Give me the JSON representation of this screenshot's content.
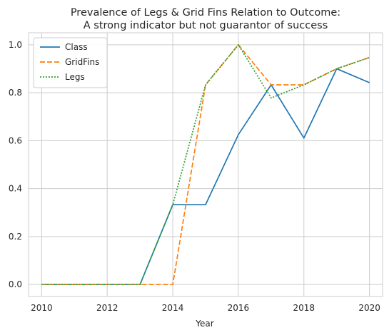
{
  "chart_data": {
    "type": "line",
    "title": "Prevalence of Legs & Grid Fins Relation to Outcome:",
    "subtitle": "A strong indicator but not guarantor of success",
    "xlabel": "Year",
    "ylabel": "",
    "xlim": [
      2009.6,
      2020.4
    ],
    "ylim": [
      -0.05,
      1.05
    ],
    "xticks": [
      "2010",
      "2012",
      "2014",
      "2016",
      "2018",
      "2020"
    ],
    "yticks": [
      "0.0",
      "0.2",
      "0.4",
      "0.6",
      "0.8",
      "1.0"
    ],
    "grid": true,
    "legend_position": "top-left",
    "x": [
      2010,
      2012,
      2013,
      2014,
      2015,
      2016,
      2017,
      2018,
      2019,
      2020
    ],
    "series": [
      {
        "name": "Class",
        "color": "#1f77b4",
        "style": "solid",
        "values": [
          0.0,
          0.0,
          0.0,
          0.333,
          0.333,
          0.625,
          0.833,
          0.611,
          0.9,
          0.842
        ]
      },
      {
        "name": "GridFins",
        "color": "#ff7f0e",
        "style": "dashed",
        "values": [
          0.0,
          0.0,
          0.0,
          0.0,
          0.833,
          1.0,
          0.833,
          0.833,
          0.9,
          0.947
        ]
      },
      {
        "name": "Legs",
        "color": "#2ca02c",
        "style": "dotted",
        "values": [
          0.0,
          0.0,
          0.0,
          0.333,
          0.833,
          1.0,
          0.778,
          0.833,
          0.9,
          0.947
        ]
      }
    ]
  }
}
